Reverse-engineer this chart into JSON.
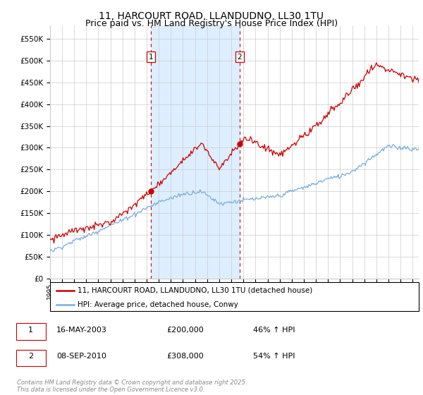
{
  "title": "11, HARCOURT ROAD, LLANDUDNO, LL30 1TU",
  "subtitle": "Price paid vs. HM Land Registry's House Price Index (HPI)",
  "ylim": [
    0,
    580000
  ],
  "yticks": [
    0,
    50000,
    100000,
    150000,
    200000,
    250000,
    300000,
    350000,
    400000,
    450000,
    500000,
    550000
  ],
  "xlim_start": 1995.0,
  "xlim_end": 2025.5,
  "sale1_date": 2003.37,
  "sale1_price": 200000,
  "sale1_label": "1",
  "sale2_date": 2010.68,
  "sale2_price": 308000,
  "sale2_label": "2",
  "red_line_color": "#cc0000",
  "blue_line_color": "#7aade0",
  "highlight_color": "#ddeeff",
  "dashed_line_color": "#cc0000",
  "grid_color": "#cccccc",
  "background_color": "#ffffff",
  "legend_label_red": "11, HARCOURT ROAD, LLANDUDNO, LL30 1TU (detached house)",
  "legend_label_blue": "HPI: Average price, detached house, Conwy",
  "footer": "Contains HM Land Registry data © Crown copyright and database right 2025.\nThis data is licensed under the Open Government Licence v3.0.",
  "title_fontsize": 10,
  "subtitle_fontsize": 9,
  "axis_fontsize": 8
}
